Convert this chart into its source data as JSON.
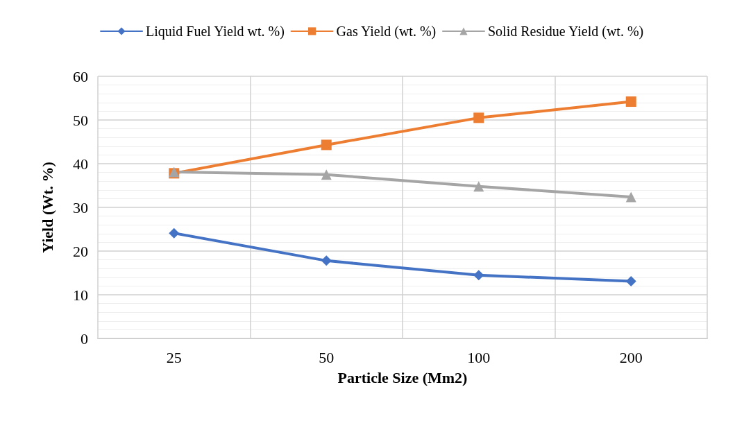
{
  "chart_data": {
    "type": "line",
    "xlabel": "Particle Size (Mm2)",
    "ylabel": "Yield (Wt. %)",
    "categories": [
      "25",
      "50",
      "100",
      "200"
    ],
    "series": [
      {
        "name": "Liquid Fuel Yield wt. %)",
        "color": "#4472c4",
        "marker": "diamond",
        "values": [
          24.1,
          17.8,
          14.5,
          13.1
        ]
      },
      {
        "name": "Gas Yield (wt. %)",
        "color": "#ed7d31",
        "marker": "square",
        "values": [
          37.8,
          44.3,
          50.5,
          54.2
        ]
      },
      {
        "name": "Solid Residue Yield (wt. %)",
        "color": "#a5a5a5",
        "marker": "triangle",
        "values": [
          38.1,
          37.5,
          34.8,
          32.4
        ]
      }
    ],
    "ylim": [
      0,
      60
    ],
    "yticks": [
      0,
      10,
      20,
      30,
      40,
      50,
      60
    ],
    "grid": true,
    "legend": "top",
    "line_style": "solid"
  }
}
